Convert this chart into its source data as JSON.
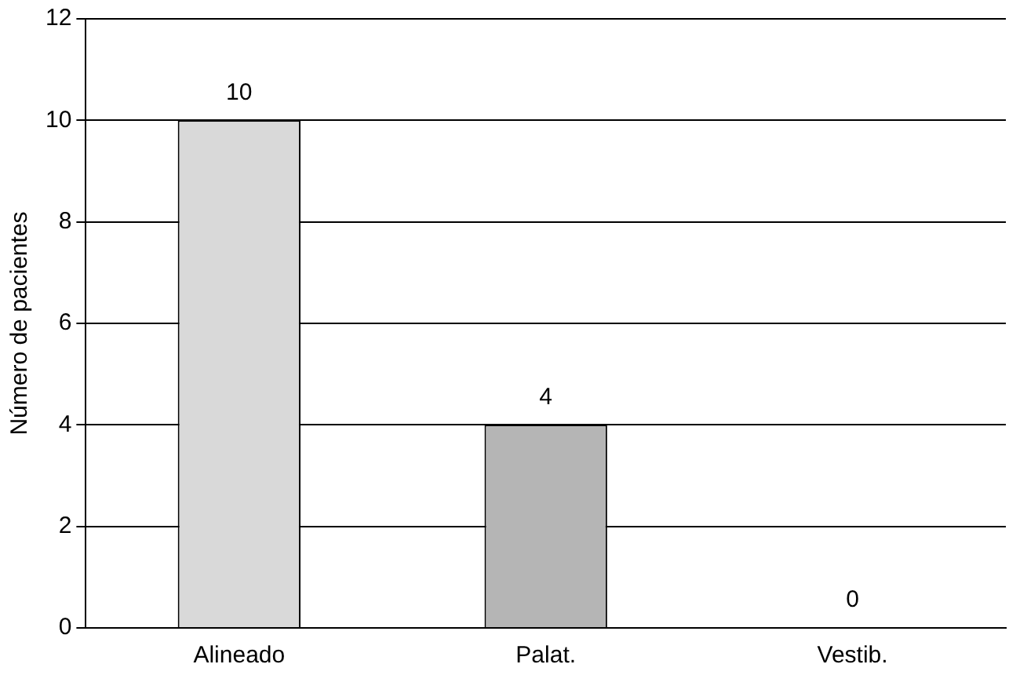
{
  "chart_data": {
    "type": "bar",
    "ylabel": "Número de pacientes",
    "categories": [
      "Alineado",
      "Palat.",
      "Vestib."
    ],
    "values": [
      10,
      4,
      0
    ],
    "colors": [
      "#d9d9d9",
      "#b5b5b5",
      "#b5b5b5"
    ],
    "ylim": [
      0,
      12
    ],
    "yticks": [
      0,
      2,
      4,
      6,
      8,
      10,
      12
    ],
    "grid": "y",
    "data_labels": true
  }
}
